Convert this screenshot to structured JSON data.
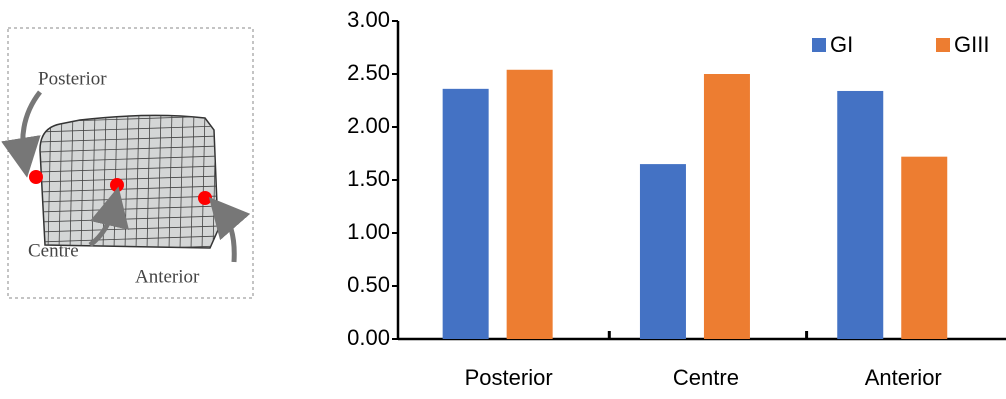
{
  "diagram": {
    "labels": [
      "Posterior",
      "Centre",
      "Anterior"
    ]
  },
  "chart_data": {
    "type": "bar",
    "categories": [
      "Posterior",
      "Centre",
      "Anterior"
    ],
    "series": [
      {
        "name": "GI",
        "color": "#4472c4",
        "values": [
          2.36,
          1.65,
          2.34
        ]
      },
      {
        "name": "GIII",
        "color": "#ed7d31",
        "values": [
          2.54,
          2.5,
          1.72
        ]
      }
    ],
    "ylim": [
      0,
      3
    ],
    "yticks": [
      {
        "value": 0,
        "label": "0.00"
      },
      {
        "value": 0.5,
        "label": "0.50"
      },
      {
        "value": 1,
        "label": "1.00"
      },
      {
        "value": 1.5,
        "label": "1.50"
      },
      {
        "value": 2,
        "label": "2.00"
      },
      {
        "value": 2.5,
        "label": "2.50"
      },
      {
        "value": 3,
        "label": "3.00"
      }
    ],
    "legend": "top-right"
  }
}
